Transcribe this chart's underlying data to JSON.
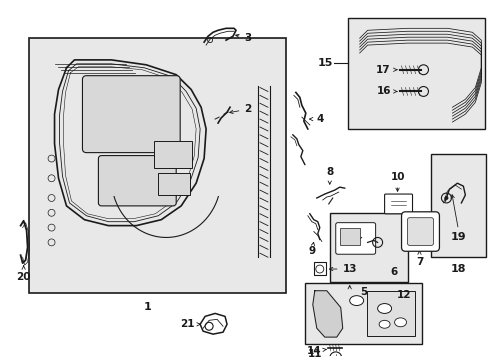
{
  "bg_color": "#ffffff",
  "diagram_bg": "#e0e0e0",
  "line_color": "#1a1a1a",
  "fig_width": 4.89,
  "fig_height": 3.6,
  "dpi": 100
}
